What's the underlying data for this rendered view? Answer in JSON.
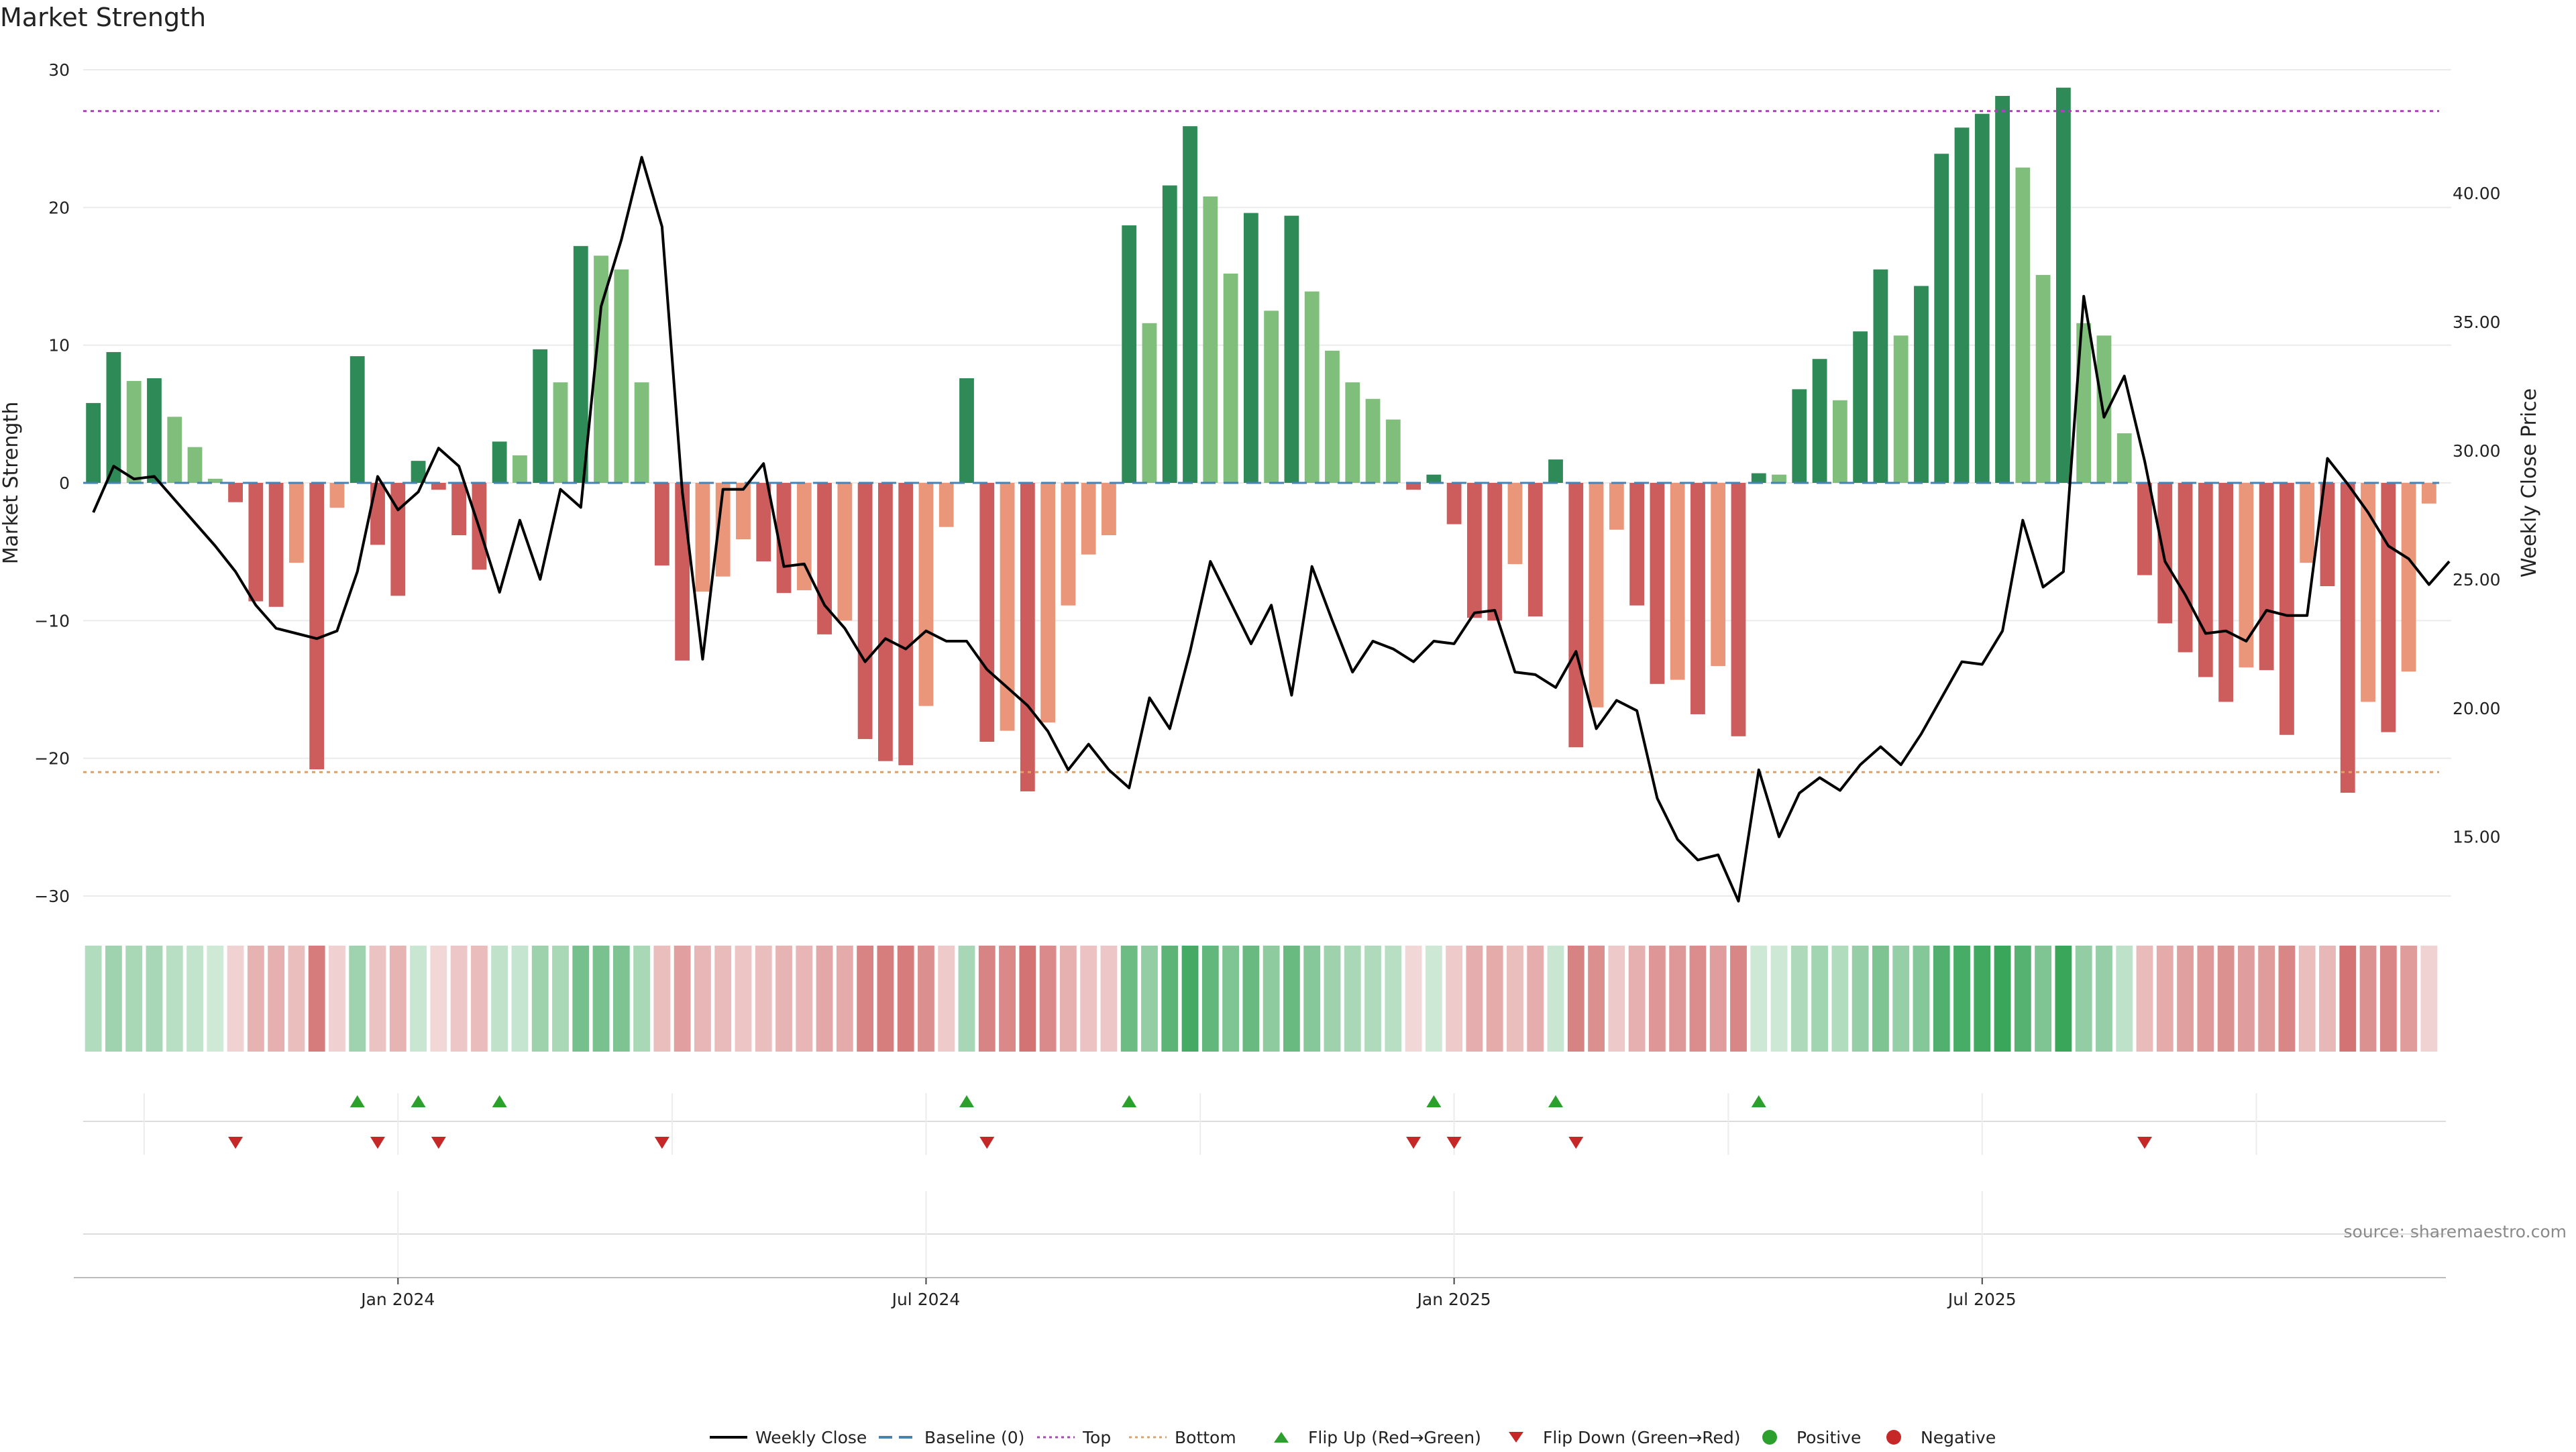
{
  "title": "Market Strength",
  "source": "source: sharemaestro.com",
  "colors": {
    "strong_green": "#2e8b57",
    "light_green": "#7fbf7b",
    "strong_red": "#cd5c5c",
    "light_red": "#e9967a",
    "line": "#000000",
    "baseline": "#4682b4",
    "top": "#b040c0",
    "bottom": "#e0a060",
    "flip_up": "#2ca02c",
    "flip_down": "#c62828",
    "positive": "#2ca02c",
    "negative": "#c62828"
  },
  "chart_data": {
    "type": "bar",
    "title": "Market Strength",
    "ylabel": "Market Strength",
    "y2label": "Weekly Close Price",
    "ylim": [
      -30,
      30
    ],
    "y2lim": [
      12.7,
      44.8
    ],
    "yticks": [
      -30,
      -20,
      -10,
      0,
      10,
      20,
      30
    ],
    "yticklabels": [
      "−30",
      "−20",
      "−10",
      "0",
      "10",
      "20",
      "30"
    ],
    "y2ticks": [
      15,
      20,
      25,
      30,
      35,
      40
    ],
    "y2ticklabels": [
      "15.00",
      "20.00",
      "25.00",
      "30.00",
      "35.00",
      "40.00"
    ],
    "top_line": 27,
    "bottom_line": -21,
    "baseline": 0,
    "x_start": "2023-09-22",
    "xticks": [
      15,
      41,
      67,
      93
    ],
    "xticklabels": [
      "Jan 2024",
      "Jul 2024",
      "Jan 2025",
      "Jul 2025"
    ],
    "series": [
      {
        "name": "Market Strength",
        "values": [
          5.8,
          9.5,
          7.4,
          7.6,
          4.8,
          2.6,
          0.3,
          -1.4,
          -8.6,
          -9.0,
          -5.8,
          -20.8,
          -1.8,
          9.2,
          -4.5,
          -8.2,
          1.6,
          -0.5,
          -3.8,
          -6.3,
          3.0,
          2.0,
          9.7,
          7.3,
          17.2,
          16.5,
          15.5,
          7.3,
          -6.0,
          -12.9,
          -7.9,
          -6.8,
          -4.1,
          -5.7,
          -8.0,
          -7.8,
          -11.0,
          -10.0,
          -18.6,
          -20.2,
          -20.5,
          -16.2,
          -3.2,
          7.6,
          -18.8,
          -18.0,
          -22.4,
          -17.4,
          -8.9,
          -5.2,
          -3.8,
          18.7,
          11.6,
          21.6,
          25.9,
          20.8,
          15.2,
          19.6,
          12.5,
          19.4,
          13.9,
          9.6,
          7.3,
          6.1,
          4.6,
          -0.5,
          0.6,
          -3.0,
          -9.8,
          -10.0,
          -5.9,
          -9.7,
          1.7,
          -19.2,
          -16.3,
          -3.4,
          -8.9,
          -14.6,
          -14.3,
          -16.8,
          -13.3,
          -18.4,
          0.7,
          0.6,
          6.8,
          9.0,
          6.0,
          11.0,
          15.5,
          10.7,
          14.3,
          23.9,
          25.8,
          26.8,
          28.1,
          22.9,
          15.1,
          28.7,
          11.6,
          10.7,
          3.6,
          -6.7,
          -10.2,
          -12.3,
          -14.1,
          -15.9,
          -13.4,
          -13.6,
          -18.3,
          -5.8,
          -7.5,
          -22.5,
          -15.9,
          -18.1,
          -13.7,
          -1.5
        ]
      },
      {
        "name": "Weekly Close",
        "values": [
          27.6,
          29.4,
          28.9,
          29.0,
          28.1,
          27.2,
          26.3,
          25.3,
          24.0,
          23.1,
          22.9,
          22.7,
          23.0,
          25.3,
          29.0,
          27.7,
          28.4,
          30.1,
          29.4,
          27.0,
          24.5,
          27.3,
          25.0,
          28.5,
          27.8,
          35.6,
          38.2,
          41.4,
          38.7,
          28.4,
          21.9,
          28.5,
          28.5,
          29.5,
          25.5,
          25.6,
          24.0,
          23.1,
          21.8,
          22.7,
          22.3,
          23.0,
          22.6,
          22.6,
          21.5,
          20.8,
          20.1,
          19.1,
          17.6,
          18.6,
          17.6,
          16.9,
          20.4,
          19.2,
          22.2,
          25.7,
          24.1,
          22.5,
          24.0,
          20.5,
          25.5,
          23.4,
          21.4,
          22.6,
          22.3,
          21.8,
          22.6,
          22.5,
          23.7,
          23.8,
          21.4,
          21.3,
          20.8,
          22.2,
          19.2,
          20.3,
          19.9,
          16.5,
          14.9,
          14.1,
          14.3,
          12.5,
          17.6,
          15.0,
          16.7,
          17.3,
          16.8,
          17.8,
          18.5,
          17.8,
          19.0,
          20.4,
          21.8,
          21.7,
          23.0,
          27.3,
          24.7,
          25.3,
          36.0,
          31.3,
          32.9,
          29.6,
          25.7,
          24.4,
          22.9,
          23.0,
          22.6,
          23.8,
          23.6,
          23.6,
          29.7,
          28.7,
          27.6,
          26.3,
          25.8,
          24.8,
          25.7
        ]
      }
    ],
    "flip_up_indices": [
      13,
      16,
      20,
      43,
      51,
      66,
      72,
      82
    ],
    "flip_down_indices": [
      7,
      14,
      17,
      28,
      44,
      65,
      67,
      73,
      101
    ],
    "legend": [
      {
        "label": "Weekly Close",
        "kind": "line"
      },
      {
        "label": "Baseline (0)",
        "kind": "dash"
      },
      {
        "label": "Top",
        "kind": "dot-top"
      },
      {
        "label": "Bottom",
        "kind": "dot-bottom"
      },
      {
        "label": "Flip Up (Red→Green)",
        "kind": "tri-up"
      },
      {
        "label": "Flip Down (Green→Red)",
        "kind": "tri-down"
      },
      {
        "label": "Positive",
        "kind": "circle-pos"
      },
      {
        "label": "Negative",
        "kind": "circle-neg"
      }
    ]
  }
}
